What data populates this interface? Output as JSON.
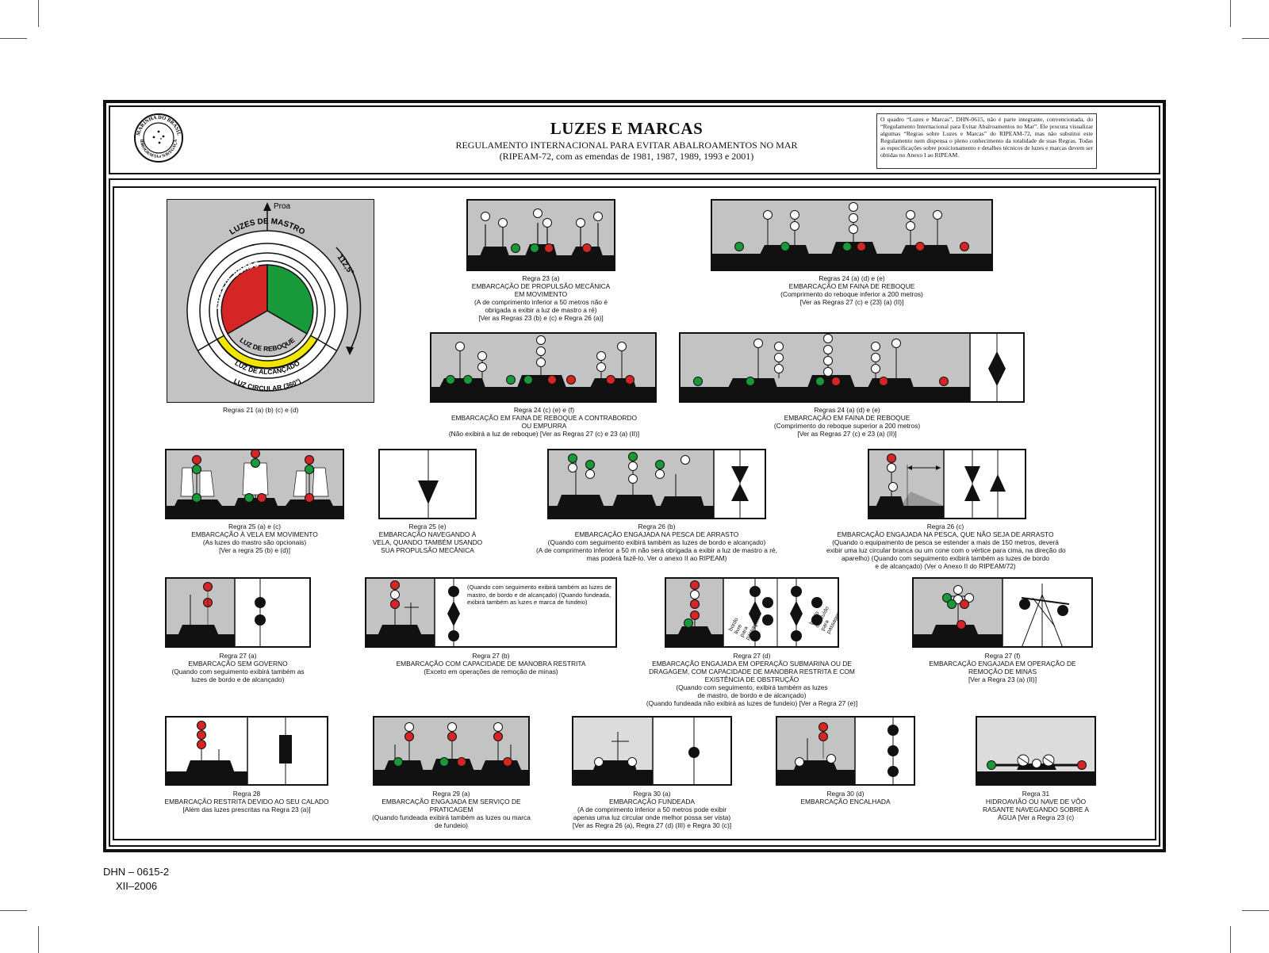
{
  "header": {
    "seal_text_top": "MARINHA DO BRASIL",
    "seal_text_bottom": "HIDROGRAFIA e NAVEGAÇÃO",
    "title": "LUZES E MARCAS",
    "subtitle": "REGULAMENTO INTERNACIONAL PARA EVITAR ABALROAMENTOS NO MAR",
    "subtitle2": "(RIPEAM-72, com as emendas de 1981, 1987, 1989, 1993 e 2001)",
    "note": "O quadro “Luzes e Marcas”, DHN-0615, não é parte integrante, convencionada, do “Regulamento Internacional para Evitar Abalroamentos no Mar”. Ele procura visualizar algumas “Regras sobre Luzes e Marcas” do RIPEAM-72, mas não substitui este Regulamento nem dispensa o pleno conhecimento da totalidade de suas Regras. Todas as especificações sobre posicionamento e detalhes técnicos de luzes e marcas devem ser obtidas no Anexo I ao RIPEAM."
  },
  "diagram": {
    "proa": "Proa",
    "angle": "112,5°",
    "mastro": "LUZES DE MASTRO",
    "bordo": "LUZES DE BORDO",
    "reboque": "LUZ DE REBOQUE",
    "alcancado": "LUZ DE ALCANÇADO",
    "circular": "LUZ CIRCULAR (360°)"
  },
  "colors": {
    "red": "#d52626",
    "green": "#18993a",
    "yellow": "#f2e600",
    "gray": "#c0c0c0",
    "black": "#111111"
  },
  "captions": {
    "r21": [
      "Regras 21 (a) (b) (c) e (d)"
    ],
    "r23a": [
      "Regra 23 (a)",
      "EMBARCAÇÃO DE PROPULSÃO MECÂNICA",
      "EM MOVIMENTO",
      "(A de comprimento inferior a 50 metros não é",
      "obrigada a exibir a luz de mastro a ré)",
      "[Ver as Regras 23 (b) e (c) e Regra 26 (a)]"
    ],
    "r24ade1": [
      "Regras 24 (a) (d) e (e)",
      "EMBARCAÇÃO EM FAINA DE REBOQUE",
      "(Comprimento do reboque inferior a 200 metros)",
      "[Ver as Regras 27 (c) e (23) (a) (II)]"
    ],
    "r24cef": [
      "Regra 24 (c) (e) e (f)",
      "EMBARCAÇÃO EM FAINA DE REBOQUE A CONTRABORDO",
      "OU EMPURRA",
      "(Não exibirá a luz de reboque) [Ver as Regras 27 (c) e 23 (a) (II)]"
    ],
    "r24ade2": [
      "Regras 24 (a) (d) e (e)",
      "EMBARCAÇÃO EM FAINA DE  REBOQUE",
      "(Comprimento do reboque superior a 200 metros)",
      "[Ver as Regras 27 (c) e 23  (a) (II)]"
    ],
    "r25ac": [
      "Regra 25 (a) e (c)",
      "EMBARCAÇÃO À VELA EM MOVIMENTO",
      "(As luzes do mastro são opcionais)",
      "[Ver a regra 25 (b) e (d)]"
    ],
    "r25e": [
      "Regra 25 (e)",
      "EMBARCAÇÃO  NAVEGANDO À",
      "VELA, QUANDO TAMBÉM USANDO",
      "SUA PROPULSÃO MECÂNICA"
    ],
    "r26b": [
      "Regra 26 (b)",
      "EMBARCAÇÃO ENGAJADA NA PESCA DE ARRASTO",
      "(Quando  com seguimento exibirá também as luzes de bordo e alcançado)",
      "(A de comprimento inferior a 50 m não será obrigada a exibir a luz de mastro a ré,",
      "mas poderá fazê-lo. Ver o anexo II ao RIPEAM)"
    ],
    "r26c": [
      "Regra 26 (c)",
      "EMBARCAÇÃO ENGAJADA NA PESCA, QUE NÃO SEJA DE ARRASTO",
      "(Quando o equipamento de pesca se estender a mais de 150 metros, deverá",
      "exibir uma luz circular branca ou um cone com o vértice para cima, na direção do",
      "aparelho) (Quando com seguimento exibirá também as luzes de bordo",
      "e de alcançado) (Ver o Anexo II do RIPEAM/72)"
    ],
    "r27a": [
      "Regra 27 (a)",
      "EMBARCAÇÃO SEM GOVERNO",
      "(Quando com seguimento exibirá também as",
      "luzes de bordo e de alcançado)"
    ],
    "r27b": [
      "Regra 27 (b)",
      "EMBARCAÇÃO COM CAPACIDADE DE MANOBRA RESTRITA",
      "(Exceto em operações de remoção de minas)"
    ],
    "r27d": [
      "Regra 27 (d)",
      "EMBARCAÇÃO ENGAJADA EM OPERAÇÃO SUBMARINA OU DE",
      "DRAGAGEM, COM CAPACIDADE DE MANOBRA RESTRITA E COM",
      "EXISTÊNCIA DE OBSTRUÇÃO",
      "(Quando com seguimento, exibirá também as luzes",
      "de mastro, de bordo e de alcançado)",
      "(Quando fundeada não exibirá as luzes de fundeio) [Ver a Regra 27 (e)]"
    ],
    "r27f": [
      "Regra 27 (f)",
      "EMBARCAÇÃO ENGAJADA EM OPERAÇÃO DE",
      "REMOÇÃO  DE MINAS",
      "[Ver a Regra 23 (a) (II)]"
    ],
    "r28": [
      "Regra 28",
      "",
      "EMBARCAÇÃO RESTRITA DEVIDO AO SEU CALADO",
      "[Além das luzes prescritas na Regra 23 (a)]"
    ],
    "r29a": [
      "Regra 29 (a)",
      "EMBARCAÇÃO ENGAJADA EM SERVIÇO DE",
      "PRATICAGEM",
      "(Quando fundeada exibirá também as luzes ou marca",
      "de fundeio)"
    ],
    "r30a": [
      "Regra 30 (a)",
      "EMBARCAÇÃO FUNDEADA",
      "(A de comprimento inferior a 50 metros pode exibir",
      "apenas uma luz circular onde melhor possa ser vista)",
      "[Ver as Regra 26 (a), Regra 27 (d) (III) e Regra 30 (c)]"
    ],
    "r30d": [
      "Regra 30 (d)",
      "EMBARCAÇÃO ENCALHADA"
    ],
    "r31": [
      "Regra 31",
      "HIDROAVIÃO OU NAVE DE VÔO",
      "RASANTE  NAVEGANDO SOBRE A",
      "ÁGUA [Ver a Regra 23 (c)"
    ]
  },
  "panel_notes": {
    "r27b_note": "(Quando com seguimento exibirá também as luzes de mastro, de bordo e de alcançado) (Quando fundeada, exibirá também as luzes e marca de fundeio)",
    "livre": "bordo\nlivre\npara\npassagem",
    "obstruido": "bordo\nobstruído\npara\npassagem"
  },
  "footer": {
    "code": "DHN – 0615-2",
    "date": "XII–2006"
  }
}
